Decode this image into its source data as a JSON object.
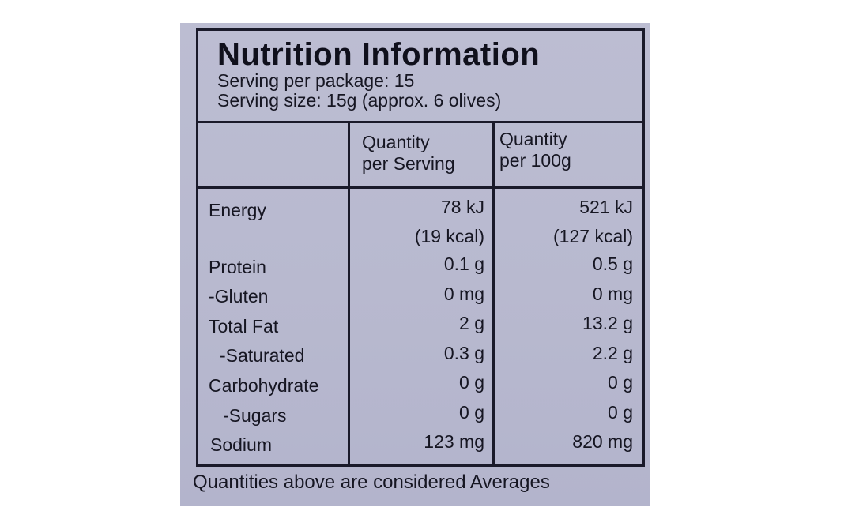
{
  "title": "Nutrition Information",
  "servings_per_package": "Serving per package: 15",
  "serving_size": "Serving  size: 15g (approx. 6 olives)",
  "columns": {
    "per_serving": [
      "Quantity",
      "per Serving"
    ],
    "per_100g": [
      "Quantity",
      "per 100g"
    ]
  },
  "rows": [
    {
      "name": "Energy",
      "per_serving": "78 kJ",
      "per_100g": "521 kJ"
    },
    {
      "name": "",
      "per_serving": "(19 kcal)",
      "per_100g": "(127 kcal)"
    },
    {
      "name": "Protein",
      "per_serving": "0.1 g",
      "per_100g": "0.5 g"
    },
    {
      "name": "-Gluten",
      "per_serving": "0 mg",
      "per_100g": "0 mg"
    },
    {
      "name": "Total Fat",
      "per_serving": "2 g",
      "per_100g": "13.2 g"
    },
    {
      "name": "-Saturated",
      "per_serving": "0.3 g",
      "per_100g": "2.2 g"
    },
    {
      "name": "Carbohydrate",
      "per_serving": "0 g",
      "per_100g": "0 g"
    },
    {
      "name": "-Sugars",
      "per_serving": "0 g",
      "per_100g": "0 g"
    },
    {
      "name": "Sodium",
      "per_serving": "123 mg",
      "per_100g": "820 mg"
    }
  ],
  "footer": "Quantities above are considered Averages",
  "colors": {
    "background": "#b8b9cf",
    "ink": "#161622"
  }
}
